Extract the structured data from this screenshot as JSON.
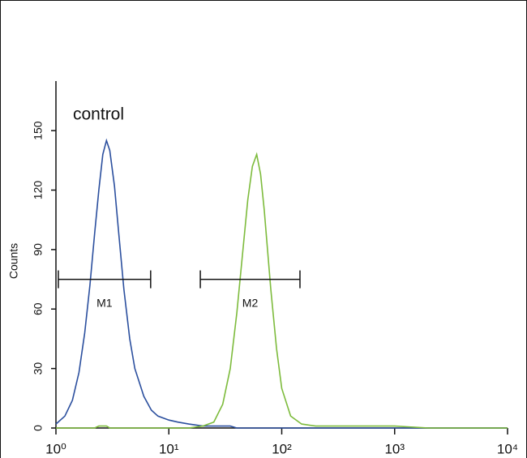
{
  "chart_data": {
    "type": "histogram-overlay",
    "annotation": "control",
    "ylabel": "Counts",
    "xscale": "log",
    "xlim": [
      1,
      10000
    ],
    "ylim": [
      0,
      175
    ],
    "xticks": [
      {
        "value": 1,
        "label": "10⁰"
      },
      {
        "value": 10,
        "label": "10¹"
      },
      {
        "value": 100,
        "label": "10²"
      },
      {
        "value": 1000,
        "label": "10³"
      },
      {
        "value": 10000,
        "label": "10⁴"
      }
    ],
    "yticks": [
      0,
      30,
      60,
      90,
      120,
      150
    ],
    "x": [
      1,
      1.2,
      1.4,
      1.6,
      1.8,
      2,
      2.2,
      2.4,
      2.6,
      2.8,
      3,
      3.3,
      3.6,
      4,
      4.5,
      5,
      6,
      7,
      8,
      10,
      12,
      15,
      20,
      25,
      30,
      35,
      40,
      45,
      50,
      55,
      60,
      65,
      70,
      80,
      90,
      100,
      120,
      150,
      200,
      300,
      500,
      1000,
      2000,
      5000,
      10000
    ],
    "series": [
      {
        "color": "#2b4f9e",
        "values": [
          2,
          6,
          14,
          28,
          48,
          72,
          98,
          120,
          138,
          145,
          140,
          122,
          98,
          70,
          45,
          30,
          16,
          9,
          6,
          4,
          3,
          2,
          1,
          1,
          1,
          1,
          0,
          0,
          0,
          0,
          0,
          0,
          0,
          0,
          0,
          0,
          0,
          0,
          0,
          0,
          0,
          0,
          0,
          0,
          0
        ]
      },
      {
        "color": "#7dbb3c",
        "values": [
          0,
          0,
          0,
          0,
          0,
          0,
          0,
          1,
          1,
          1,
          0,
          0,
          0,
          0,
          0,
          0,
          0,
          0,
          0,
          0,
          0,
          0,
          1,
          3,
          12,
          30,
          58,
          88,
          115,
          132,
          138,
          128,
          110,
          70,
          40,
          20,
          6,
          2,
          1,
          1,
          1,
          1,
          0,
          0,
          0
        ]
      }
    ],
    "markers": [
      {
        "label": "M1",
        "range": [
          1.05,
          6.9
        ],
        "y": 75
      },
      {
        "label": "M2",
        "range": [
          19,
          145
        ],
        "y": 75
      }
    ]
  }
}
